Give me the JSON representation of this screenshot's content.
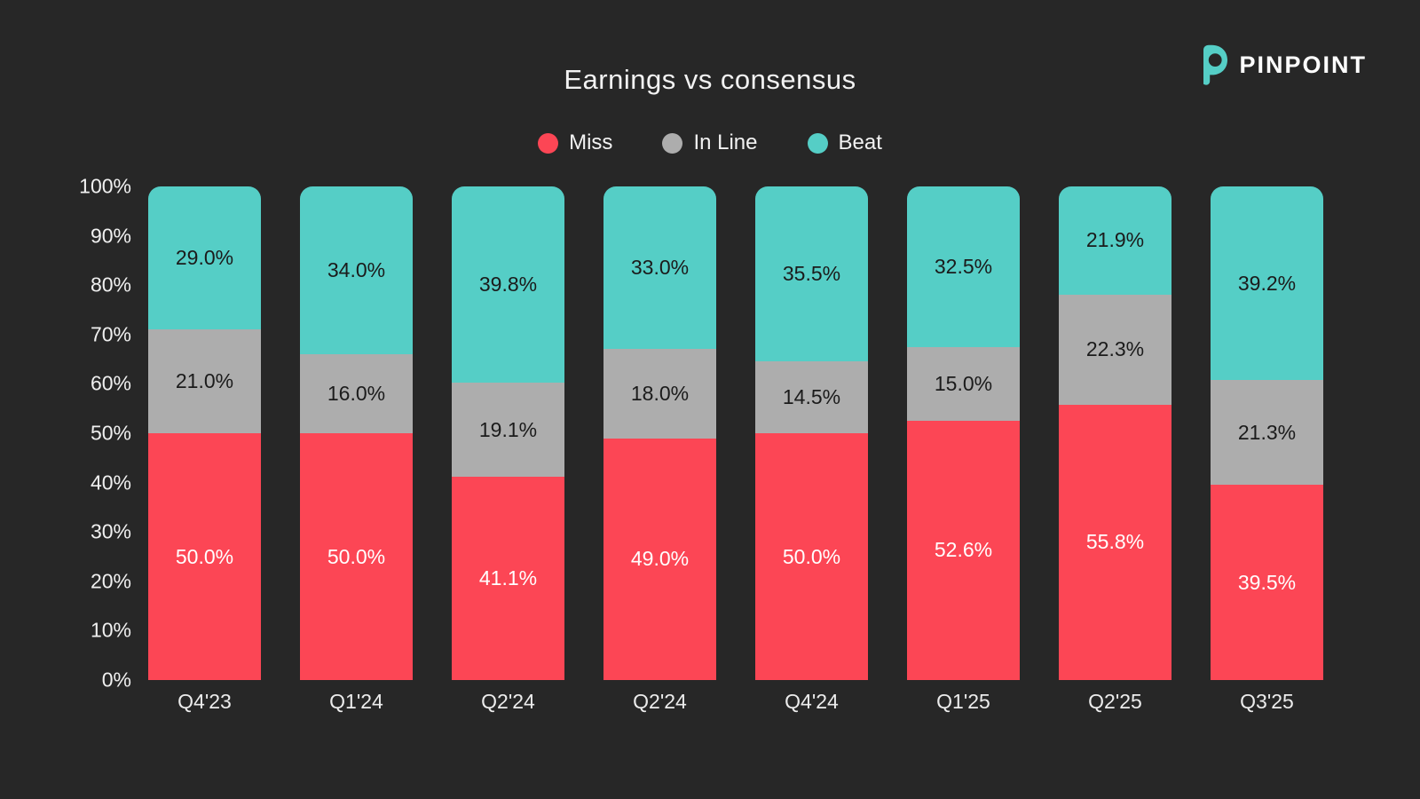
{
  "page": {
    "background_color": "#272727",
    "title": "Earnings vs consensus"
  },
  "brand": {
    "name": "PINPOINT",
    "icon": "pinpoint-logo",
    "icon_color": "#55CEC6",
    "text_color": "#FFFFFF"
  },
  "chart_data": {
    "type": "bar",
    "stacked": true,
    "grid": false,
    "legend_position": "top-center",
    "title": "Earnings vs consensus",
    "xlabel": "",
    "ylabel": "",
    "ylim": [
      0,
      100
    ],
    "yticks": [
      "0%",
      "10%",
      "20%",
      "30%",
      "40%",
      "50%",
      "60%",
      "70%",
      "80%",
      "90%",
      "100%"
    ],
    "value_suffix": "%",
    "categories": [
      "Q4'23",
      "Q1'24",
      "Q2'24",
      "Q2'24",
      "Q4'24",
      "Q1'25",
      "Q2'25",
      "Q3'25"
    ],
    "series": [
      {
        "name": "Miss",
        "color": "#FC4655",
        "label_color": "#FFFFFF",
        "values": [
          50.0,
          50.0,
          41.1,
          49.0,
          50.0,
          52.6,
          55.8,
          39.5
        ]
      },
      {
        "name": "In Line",
        "color": "#ADADAD",
        "label_color": "#1B1B1B",
        "values": [
          21.0,
          16.0,
          19.1,
          18.0,
          14.5,
          15.0,
          22.3,
          21.3
        ]
      },
      {
        "name": "Beat",
        "color": "#55CEC6",
        "label_color": "#1B1B1B",
        "values": [
          29.0,
          34.0,
          39.8,
          33.0,
          35.5,
          32.5,
          21.9,
          39.2
        ]
      }
    ]
  }
}
